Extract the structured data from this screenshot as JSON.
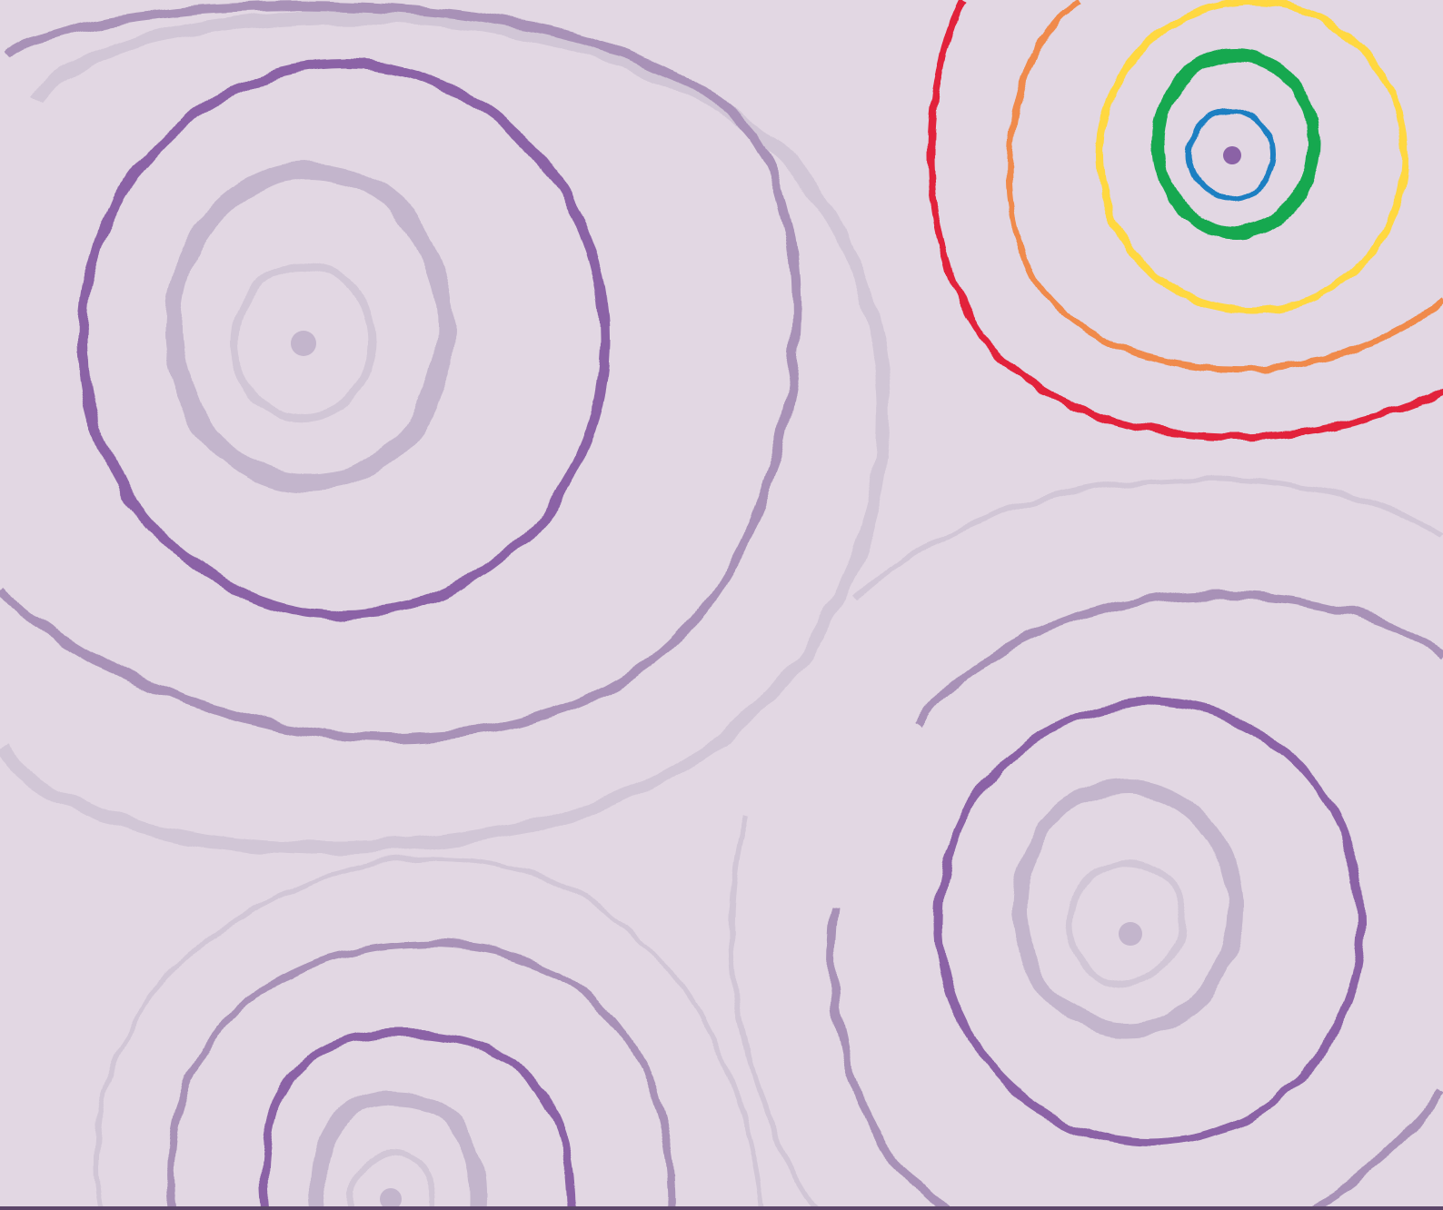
{
  "colors": {
    "background": "#e2d7e3",
    "purple_dark": "#8b62a6",
    "purple_mid": "#a891b7",
    "purple_light": "#c3b5cc",
    "purple_faint": "#d1c6d6",
    "red": "#e2233b",
    "orange": "#f08a4b",
    "yellow": "#ffd83f",
    "green": "#13a84f",
    "blue": "#1a7fc2",
    "bottom_rule": "#5b4569"
  },
  "motifs": [
    {
      "name": "purple-ring-cluster-top-left",
      "rings": 5,
      "palette": "purple"
    },
    {
      "name": "rainbow-ring-cluster-top-right",
      "rings": 5,
      "palette": "rainbow"
    },
    {
      "name": "purple-ring-cluster-bottom-right",
      "rings": 5,
      "palette": "purple"
    },
    {
      "name": "purple-ring-cluster-bottom-left",
      "rings": 5,
      "palette": "purple"
    }
  ]
}
